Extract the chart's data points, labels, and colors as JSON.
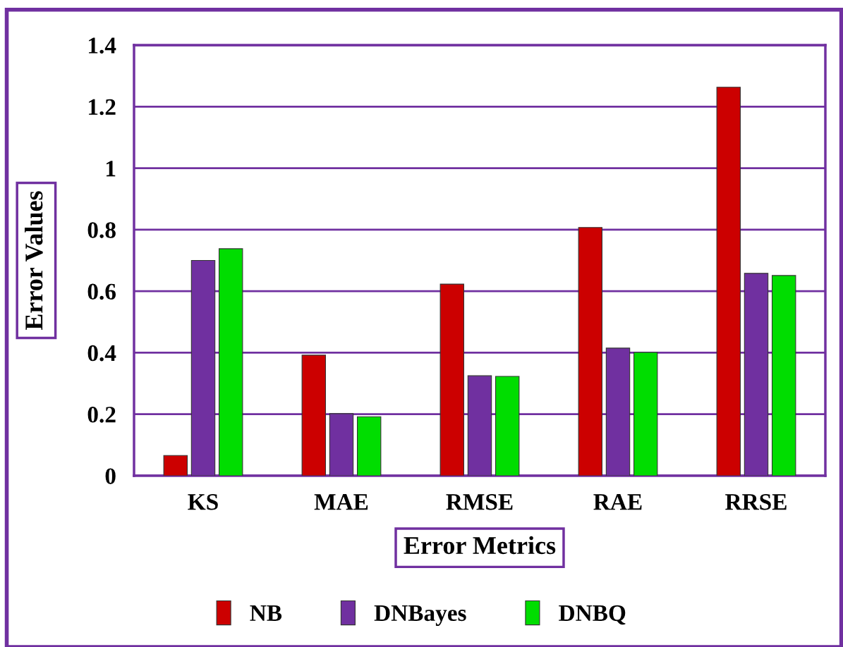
{
  "chart_data": {
    "type": "bar",
    "xlabel": "Error Metrics",
    "ylabel": "Error Values",
    "categories": [
      "KS",
      "MAE",
      "RMSE",
      "RAE",
      "RRSE"
    ],
    "series": [
      {
        "name": "NB",
        "color": "#cc0000",
        "values": [
          0.066,
          0.392,
          0.623,
          0.807,
          1.263
        ]
      },
      {
        "name": "DNBayes",
        "color": "#7030a0",
        "values": [
          0.7,
          0.202,
          0.325,
          0.415,
          0.658
        ]
      },
      {
        "name": "DNBQ",
        "color": "#00dd00",
        "values": [
          0.738,
          0.192,
          0.323,
          0.401,
          0.651
        ]
      }
    ],
    "ylim": [
      0,
      1.4
    ],
    "yticks": [
      0,
      0.2,
      0.4,
      0.6,
      0.8,
      1,
      1.2,
      1.4
    ],
    "grid": "y",
    "legend": "bottom"
  }
}
